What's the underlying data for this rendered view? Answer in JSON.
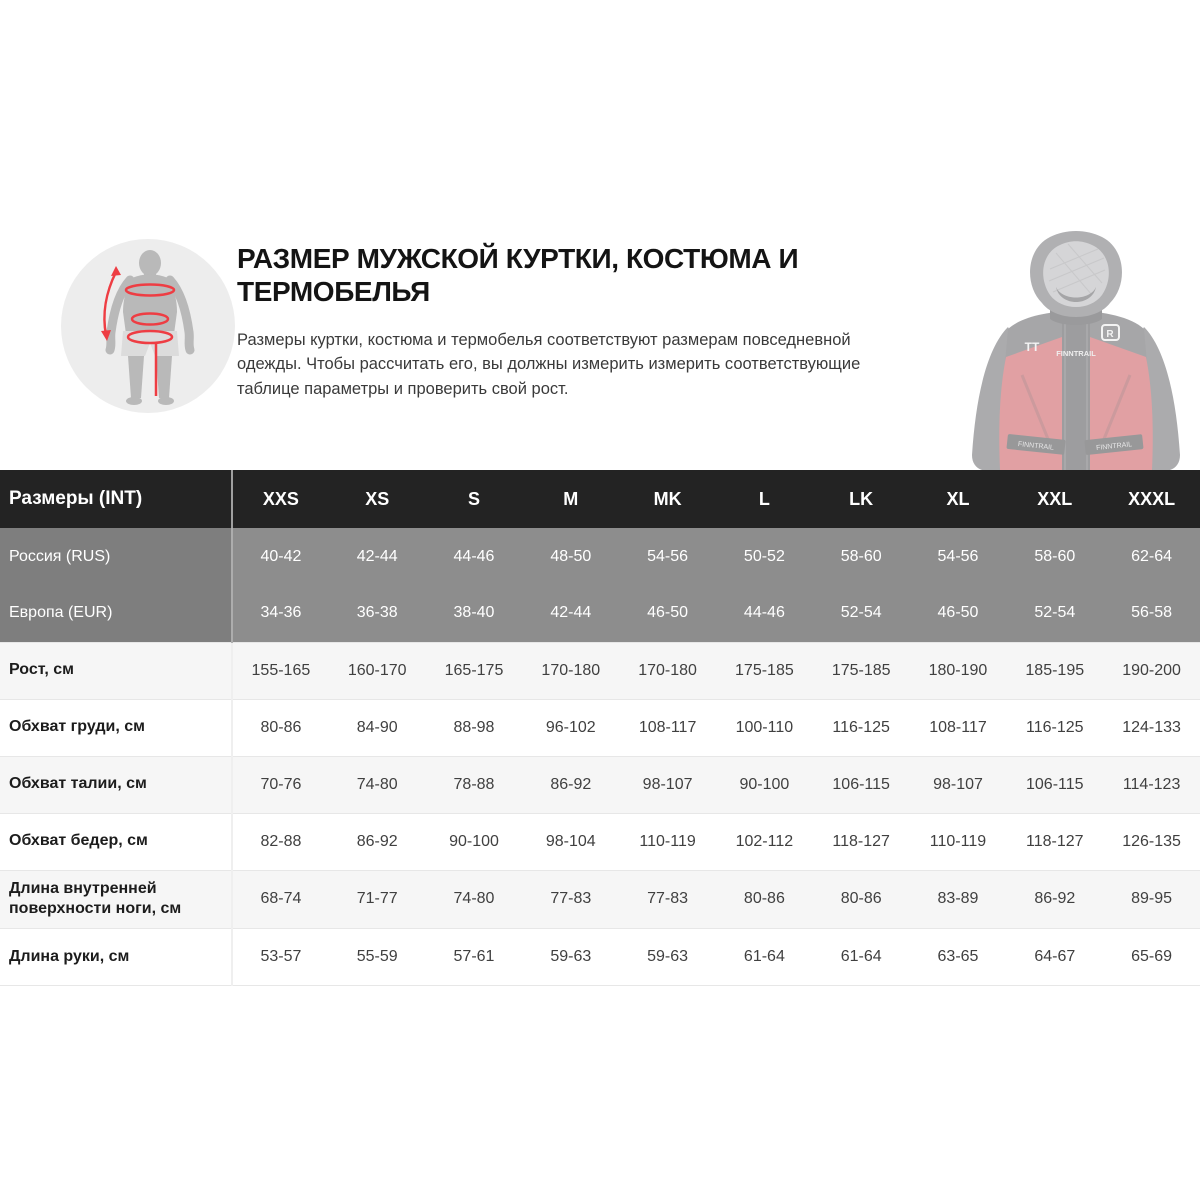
{
  "header": {
    "title": "РАЗМЕР МУЖСКОЙ КУРТКИ, КОСТЮМА И ТЕРМОБЕЛЬЯ",
    "description": "Размеры куртки, костюма и термобелья соответствуют размерам повседневной одежды. Чтобы рассчитать его, вы должны измерить измерить соответствующие таблице параметры и проверить свой рост.",
    "body_measurement_icon": "male-silhouette-with-red-measurement-lines-icon",
    "jacket_image": "faded-red-black-hooded-jacket-photo",
    "jacket_brand_marks": {
      "left_chest": "TT",
      "right_chest_logo": "R",
      "center_brand": "FINNTRAIL",
      "left_strap": "FINNTRAIL",
      "right_strap": "FINNTRAIL"
    }
  },
  "table": {
    "corner_label": "Размеры (INT)",
    "columns": [
      "XXS",
      "XS",
      "S",
      "M",
      "MK",
      "L",
      "LK",
      "XL",
      "XXL",
      "XXXL"
    ],
    "gray_rows": [
      {
        "label": "Россия (RUS)",
        "values": [
          "40-42",
          "42-44",
          "44-46",
          "48-50",
          "54-56",
          "50-52",
          "58-60",
          "54-56",
          "58-60",
          "62-64"
        ]
      },
      {
        "label": "Европа (EUR)",
        "values": [
          "34-36",
          "36-38",
          "38-40",
          "42-44",
          "46-50",
          "44-46",
          "52-54",
          "46-50",
          "52-54",
          "56-58"
        ]
      }
    ],
    "rows": [
      {
        "label": "Рост, см",
        "values": [
          "155-165",
          "160-170",
          "165-175",
          "170-180",
          "170-180",
          "175-185",
          "175-185",
          "180-190",
          "185-195",
          "190-200"
        ]
      },
      {
        "label": "Обхват груди, см",
        "values": [
          "80-86",
          "84-90",
          "88-98",
          "96-102",
          "108-117",
          "100-110",
          "116-125",
          "108-117",
          "116-125",
          "124-133"
        ]
      },
      {
        "label": "Обхват талии, см",
        "values": [
          "70-76",
          "74-80",
          "78-88",
          "86-92",
          "98-107",
          "90-100",
          "106-115",
          "98-107",
          "106-115",
          "114-123"
        ]
      },
      {
        "label": "Обхват бедер, см",
        "values": [
          "82-88",
          "86-92",
          "90-100",
          "98-104",
          "110-119",
          "102-112",
          "118-127",
          "110-119",
          "118-127",
          "126-135"
        ]
      },
      {
        "label": "Длина внутренней поверхности ноги, см",
        "values": [
          "68-74",
          "71-77",
          "74-80",
          "77-83",
          "77-83",
          "80-86",
          "80-86",
          "83-89",
          "86-92",
          "89-95"
        ]
      },
      {
        "label": "Длина руки, см",
        "values": [
          "53-57",
          "55-59",
          "57-61",
          "59-63",
          "59-63",
          "61-64",
          "61-64",
          "63-65",
          "64-67",
          "65-69"
        ]
      }
    ]
  },
  "colors": {
    "accent_red": "#e23b3f",
    "header_bg": "#232323",
    "gray_row_bg": "#8d8d8d",
    "gray_label_bg": "#7e7e7e",
    "zebra_row_bg": "#f6f6f6",
    "text_dark": "#141414",
    "text_body": "#3a3a3a"
  }
}
